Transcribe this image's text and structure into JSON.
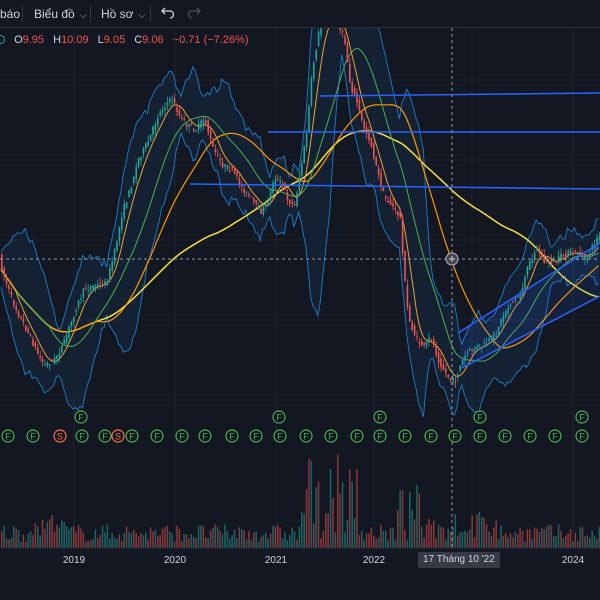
{
  "toolbar": {
    "item1_label": "báo",
    "item2_label": "Biểu đồ",
    "item3_label": "Hồ sơ",
    "undo_icon": "undo-icon",
    "redo_icon": "redo-icon"
  },
  "legend": {
    "o_label": "O",
    "o_value": "9.95",
    "h_label": "H",
    "h_value": "10.09",
    "l_label": "L",
    "l_value": "9.05",
    "c_label": "C",
    "c_value": "9.06",
    "change": "−0.71 (−7.26%)",
    "value_color": "#ef5350"
  },
  "crosshair": {
    "date_label": "17 Tháng 10 '22"
  },
  "colors": {
    "background": "#131722",
    "up": "#26a69a",
    "down": "#ef5350",
    "trendline": "#2962ff",
    "ma_yellow": "#f5e040",
    "ma_orange": "#f0a030",
    "bollinger": "#2196f3",
    "marker_f": "#4caf50",
    "marker_s": "#ff7043"
  },
  "chart_data": {
    "type": "candlestick",
    "x_tick_labels": [
      "2019",
      "2020",
      "2021",
      "2022",
      "2024"
    ],
    "legend_ohlc": {
      "open": 9.95,
      "high": 10.09,
      "low": 9.05,
      "close": 9.06
    },
    "shape_points": [
      [
        0,
        0.52
      ],
      [
        6,
        0.6
      ],
      [
        14,
        0.68
      ],
      [
        22,
        0.74
      ],
      [
        30,
        0.79
      ],
      [
        38,
        0.85
      ],
      [
        46,
        0.9
      ],
      [
        56,
        0.88
      ],
      [
        66,
        0.82
      ],
      [
        76,
        0.72
      ],
      [
        86,
        0.64
      ],
      [
        96,
        0.63
      ],
      [
        108,
        0.62
      ],
      [
        116,
        0.52
      ],
      [
        124,
        0.38
      ],
      [
        132,
        0.3
      ],
      [
        140,
        0.2
      ],
      [
        150,
        0.14
      ],
      [
        160,
        0.05
      ],
      [
        168,
        0.01
      ],
      [
        174,
        0.0
      ],
      [
        182,
        0.06
      ],
      [
        190,
        0.09
      ],
      [
        198,
        0.1
      ],
      [
        206,
        0.06
      ],
      [
        214,
        0.16
      ],
      [
        224,
        0.22
      ],
      [
        234,
        0.24
      ],
      [
        244,
        0.3
      ],
      [
        254,
        0.34
      ],
      [
        262,
        0.38
      ],
      [
        268,
        0.36
      ],
      [
        276,
        0.26
      ],
      [
        284,
        0.29
      ],
      [
        290,
        0.34
      ],
      [
        296,
        0.36
      ],
      [
        302,
        0.24
      ],
      [
        308,
        0.12
      ],
      [
        314,
        -0.1
      ],
      [
        322,
        -0.26
      ],
      [
        332,
        -0.3
      ],
      [
        340,
        -0.25
      ],
      [
        346,
        -0.21
      ],
      [
        352,
        -0.05
      ],
      [
        358,
        0.0
      ],
      [
        364,
        0.08
      ],
      [
        372,
        0.14
      ],
      [
        378,
        0.23
      ],
      [
        386,
        0.33
      ],
      [
        394,
        0.36
      ],
      [
        402,
        0.4
      ],
      [
        406,
        0.6
      ],
      [
        410,
        0.74
      ],
      [
        418,
        0.81
      ],
      [
        426,
        0.84
      ],
      [
        432,
        0.8
      ],
      [
        440,
        0.88
      ],
      [
        448,
        0.93
      ],
      [
        456,
        0.96
      ],
      [
        462,
        0.9
      ],
      [
        468,
        0.86
      ],
      [
        476,
        0.84
      ],
      [
        486,
        0.83
      ],
      [
        496,
        0.8
      ],
      [
        506,
        0.72
      ],
      [
        514,
        0.68
      ],
      [
        522,
        0.66
      ],
      [
        530,
        0.56
      ],
      [
        538,
        0.5
      ],
      [
        546,
        0.55
      ],
      [
        556,
        0.55
      ],
      [
        566,
        0.52
      ],
      [
        578,
        0.52
      ],
      [
        588,
        0.54
      ],
      [
        600,
        0.46
      ]
    ],
    "trend_lines": [
      {
        "from": [
          320,
          96
        ],
        "to": [
          600,
          93
        ]
      },
      {
        "from": [
          268,
          132
        ],
        "to": [
          600,
          132
        ]
      },
      {
        "from": [
          190,
          184
        ],
        "to": [
          600,
          189
        ]
      },
      {
        "from": [
          458,
          333
        ],
        "to": [
          600,
          243
        ]
      },
      {
        "from": [
          462,
          368
        ],
        "to": [
          600,
          296
        ]
      }
    ],
    "markers_top": [
      {
        "label": "F",
        "x": 81
      },
      {
        "label": "F",
        "x": 279
      },
      {
        "label": "F",
        "x": 380
      },
      {
        "label": "F",
        "x": 480
      },
      {
        "label": "F",
        "x": 582
      }
    ],
    "markers_row": [
      {
        "label": "F",
        "x": 8
      },
      {
        "label": "F",
        "x": 33
      },
      {
        "label": "S",
        "x": 60
      },
      {
        "label": "F",
        "x": 82
      },
      {
        "label": "F",
        "x": 105
      },
      {
        "label": "S",
        "x": 118
      },
      {
        "label": "F",
        "x": 132
      },
      {
        "label": "F",
        "x": 157
      },
      {
        "label": "F",
        "x": 182
      },
      {
        "label": "F",
        "x": 205
      },
      {
        "label": "F",
        "x": 232
      },
      {
        "label": "F",
        "x": 256
      },
      {
        "label": "F",
        "x": 280
      },
      {
        "label": "F",
        "x": 306
      },
      {
        "label": "F",
        "x": 331
      },
      {
        "label": "F",
        "x": 357
      },
      {
        "label": "F",
        "x": 380
      },
      {
        "label": "F",
        "x": 405
      },
      {
        "label": "F",
        "x": 431
      },
      {
        "label": "F",
        "x": 455
      },
      {
        "label": "F",
        "x": 480
      },
      {
        "label": "F",
        "x": 505
      },
      {
        "label": "F",
        "x": 530
      },
      {
        "label": "F",
        "x": 555
      },
      {
        "label": "F",
        "x": 582
      }
    ],
    "crosshair": {
      "x": 452,
      "y": 259
    }
  }
}
